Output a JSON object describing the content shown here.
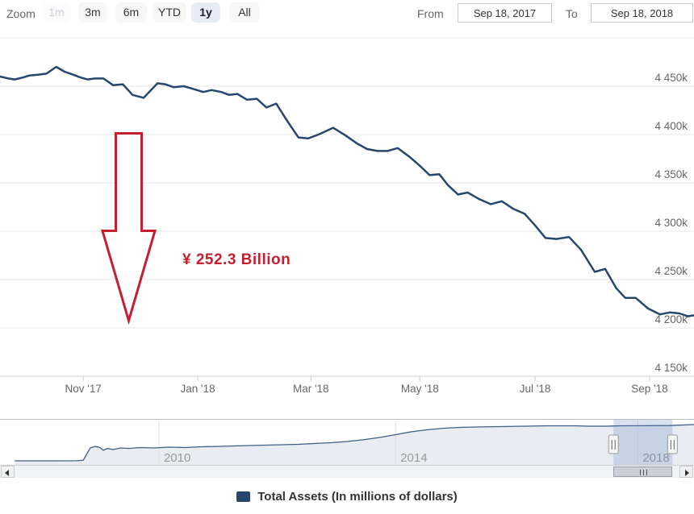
{
  "toolbar": {
    "zoom_label": "Zoom",
    "buttons": [
      {
        "label": "1m",
        "state": "disabled"
      },
      {
        "label": "3m",
        "state": "normal"
      },
      {
        "label": "6m",
        "state": "normal"
      },
      {
        "label": "YTD",
        "state": "normal"
      },
      {
        "label": "1y",
        "state": "selected"
      },
      {
        "label": "All",
        "state": "normal"
      }
    ],
    "from_label": "From",
    "from_value": "Sep 18, 2017",
    "to_label": "To",
    "to_value": "Sep 18, 2018"
  },
  "annotation": {
    "text": "¥ 252.3 Billion"
  },
  "legend": {
    "label": "Total Assets (In millions of dollars)"
  },
  "colors": {
    "series": "#25476e",
    "nav_line": "#3c5f88",
    "nav_area": "#e9ecf1",
    "red": "#c41e2f",
    "grid": "#e6e6e6",
    "axis_line": "#cfcfcf",
    "tick": "#cccccc",
    "axis_label": "#666666",
    "year_label": "#999999",
    "selection_fill": "rgba(102,131,195,0.25)"
  },
  "chart_data": {
    "type": "line",
    "title": "",
    "x_range": [
      "Sep 18, 2017",
      "Sep 18, 2018"
    ],
    "values_unit": "k = thousands of millions of dollars",
    "ylim_k": [
      4150,
      4500
    ],
    "grid_top_value_k": 4500,
    "y_ticks": [
      {
        "label": "4 450k",
        "v": 4450
      },
      {
        "label": "4 400k",
        "v": 4400
      },
      {
        "label": "4 350k",
        "v": 4350
      },
      {
        "label": "4 300k",
        "v": 4300
      },
      {
        "label": "4 250k",
        "v": 4250
      },
      {
        "label": "4 200k",
        "v": 4200
      },
      {
        "label": "4 150k",
        "v": 4150
      }
    ],
    "x_ticks": [
      {
        "label": "Nov '17",
        "t": 0.12
      },
      {
        "label": "Jan '18",
        "t": 0.285
      },
      {
        "label": "Mar '18",
        "t": 0.448
      },
      {
        "label": "May '18",
        "t": 0.605
      },
      {
        "label": "Jul '18",
        "t": 0.771
      },
      {
        "label": "Sep '18",
        "t": 0.936
      }
    ],
    "series": [
      {
        "name": "Total Assets (In millions of dollars)",
        "points": [
          {
            "t": 0.0,
            "v": 4460
          },
          {
            "t": 0.012,
            "v": 4458
          },
          {
            "t": 0.021,
            "v": 4457
          },
          {
            "t": 0.033,
            "v": 4459
          },
          {
            "t": 0.042,
            "v": 4461
          },
          {
            "t": 0.056,
            "v": 4462
          },
          {
            "t": 0.067,
            "v": 4463
          },
          {
            "t": 0.081,
            "v": 4470
          },
          {
            "t": 0.093,
            "v": 4465
          },
          {
            "t": 0.105,
            "v": 4462
          },
          {
            "t": 0.116,
            "v": 4459
          },
          {
            "t": 0.126,
            "v": 4457
          },
          {
            "t": 0.137,
            "v": 4458
          },
          {
            "t": 0.149,
            "v": 4458
          },
          {
            "t": 0.163,
            "v": 4451
          },
          {
            "t": 0.177,
            "v": 4452
          },
          {
            "t": 0.191,
            "v": 4441
          },
          {
            "t": 0.207,
            "v": 4438
          },
          {
            "t": 0.227,
            "v": 4453
          },
          {
            "t": 0.238,
            "v": 4452
          },
          {
            "t": 0.25,
            "v": 4449
          },
          {
            "t": 0.265,
            "v": 4450
          },
          {
            "t": 0.279,
            "v": 4447
          },
          {
            "t": 0.293,
            "v": 4444
          },
          {
            "t": 0.305,
            "v": 4446
          },
          {
            "t": 0.319,
            "v": 4444
          },
          {
            "t": 0.33,
            "v": 4441
          },
          {
            "t": 0.342,
            "v": 4442
          },
          {
            "t": 0.356,
            "v": 4436
          },
          {
            "t": 0.37,
            "v": 4437
          },
          {
            "t": 0.384,
            "v": 4428
          },
          {
            "t": 0.398,
            "v": 4432
          },
          {
            "t": 0.414,
            "v": 4414
          },
          {
            "t": 0.43,
            "v": 4397
          },
          {
            "t": 0.444,
            "v": 4396
          },
          {
            "t": 0.459,
            "v": 4400
          },
          {
            "t": 0.48,
            "v": 4407
          },
          {
            "t": 0.498,
            "v": 4399
          },
          {
            "t": 0.514,
            "v": 4391
          },
          {
            "t": 0.529,
            "v": 4385
          },
          {
            "t": 0.544,
            "v": 4383
          },
          {
            "t": 0.558,
            "v": 4383
          },
          {
            "t": 0.573,
            "v": 4386
          },
          {
            "t": 0.59,
            "v": 4377
          },
          {
            "t": 0.606,
            "v": 4367
          },
          {
            "t": 0.619,
            "v": 4358
          },
          {
            "t": 0.633,
            "v": 4359
          },
          {
            "t": 0.645,
            "v": 4348
          },
          {
            "t": 0.66,
            "v": 4338
          },
          {
            "t": 0.674,
            "v": 4340
          },
          {
            "t": 0.691,
            "v": 4333
          },
          {
            "t": 0.707,
            "v": 4328
          },
          {
            "t": 0.723,
            "v": 4331
          },
          {
            "t": 0.74,
            "v": 4323
          },
          {
            "t": 0.756,
            "v": 4318
          },
          {
            "t": 0.771,
            "v": 4306
          },
          {
            "t": 0.786,
            "v": 4293
          },
          {
            "t": 0.802,
            "v": 4292
          },
          {
            "t": 0.82,
            "v": 4294
          },
          {
            "t": 0.837,
            "v": 4281
          },
          {
            "t": 0.857,
            "v": 4258
          },
          {
            "t": 0.872,
            "v": 4261
          },
          {
            "t": 0.888,
            "v": 4241
          },
          {
            "t": 0.901,
            "v": 4231
          },
          {
            "t": 0.916,
            "v": 4231
          },
          {
            "t": 0.934,
            "v": 4220
          },
          {
            "t": 0.951,
            "v": 4214
          },
          {
            "t": 0.965,
            "v": 4216
          },
          {
            "t": 0.979,
            "v": 4215
          },
          {
            "t": 0.991,
            "v": 4212
          },
          {
            "t": 1.0,
            "v": 4213
          }
        ]
      }
    ]
  },
  "navigator": {
    "year_ticks": [
      {
        "label": "2010",
        "t": 0.229
      },
      {
        "label": "2014",
        "t": 0.57
      },
      {
        "label": "2018",
        "t": 0.919
      }
    ],
    "selection": {
      "from_t": 0.884,
      "to_t": 0.969
    },
    "vmax_k": 4700,
    "points": [
      {
        "t": 0.021,
        "v": 500
      },
      {
        "t": 0.047,
        "v": 500
      },
      {
        "t": 0.081,
        "v": 505
      },
      {
        "t": 0.11,
        "v": 515
      },
      {
        "t": 0.12,
        "v": 560
      },
      {
        "t": 0.126,
        "v": 1340
      },
      {
        "t": 0.13,
        "v": 1850
      },
      {
        "t": 0.137,
        "v": 2010
      },
      {
        "t": 0.144,
        "v": 1890
      },
      {
        "t": 0.149,
        "v": 1600
      },
      {
        "t": 0.155,
        "v": 1800
      },
      {
        "t": 0.163,
        "v": 1680
      },
      {
        "t": 0.174,
        "v": 1850
      },
      {
        "t": 0.186,
        "v": 1800
      },
      {
        "t": 0.202,
        "v": 1890
      },
      {
        "t": 0.221,
        "v": 1850
      },
      {
        "t": 0.244,
        "v": 1930
      },
      {
        "t": 0.267,
        "v": 1890
      },
      {
        "t": 0.291,
        "v": 1970
      },
      {
        "t": 0.314,
        "v": 2010
      },
      {
        "t": 0.337,
        "v": 2060
      },
      {
        "t": 0.36,
        "v": 2100
      },
      {
        "t": 0.384,
        "v": 2140
      },
      {
        "t": 0.407,
        "v": 2180
      },
      {
        "t": 0.43,
        "v": 2220
      },
      {
        "t": 0.453,
        "v": 2310
      },
      {
        "t": 0.477,
        "v": 2390
      },
      {
        "t": 0.5,
        "v": 2520
      },
      {
        "t": 0.523,
        "v": 2690
      },
      {
        "t": 0.547,
        "v": 2940
      },
      {
        "t": 0.57,
        "v": 3230
      },
      {
        "t": 0.593,
        "v": 3530
      },
      {
        "t": 0.616,
        "v": 3740
      },
      {
        "t": 0.64,
        "v": 3900
      },
      {
        "t": 0.663,
        "v": 3990
      },
      {
        "t": 0.686,
        "v": 4030
      },
      {
        "t": 0.721,
        "v": 4070
      },
      {
        "t": 0.756,
        "v": 4110
      },
      {
        "t": 0.791,
        "v": 4155
      },
      {
        "t": 0.826,
        "v": 4155
      },
      {
        "t": 0.849,
        "v": 4113
      },
      {
        "t": 0.872,
        "v": 4113
      },
      {
        "t": 0.895,
        "v": 4155
      },
      {
        "t": 0.93,
        "v": 4160
      },
      {
        "t": 0.965,
        "v": 4180
      },
      {
        "t": 1.0,
        "v": 4280
      }
    ]
  }
}
